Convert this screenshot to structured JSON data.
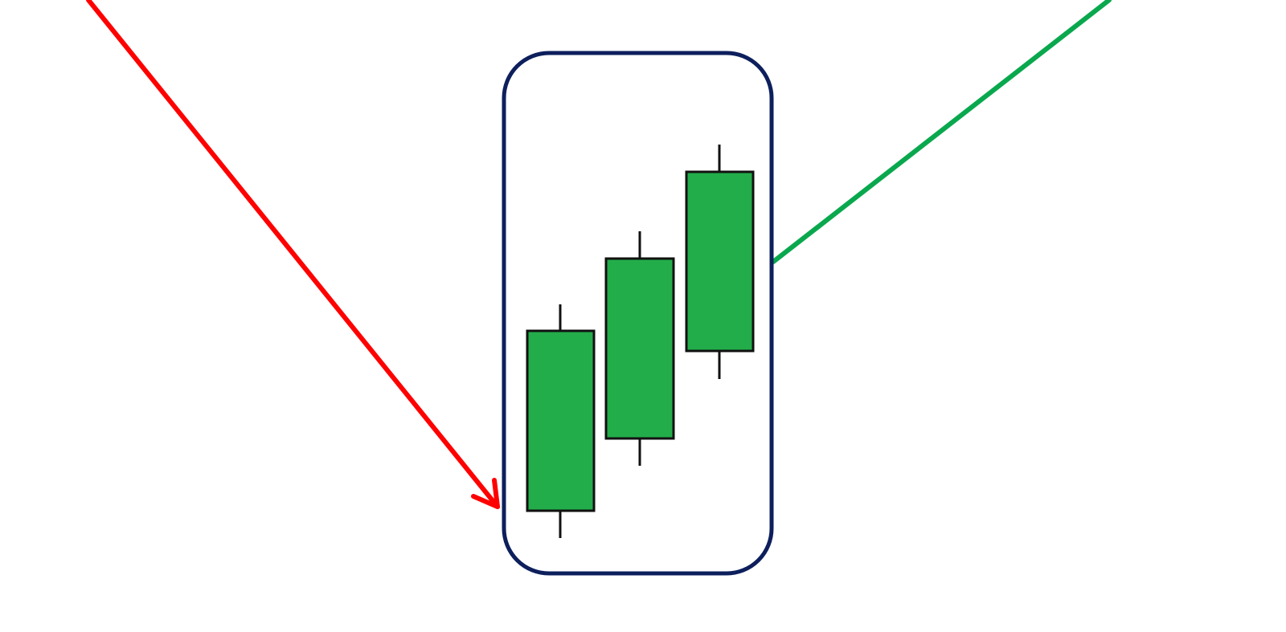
{
  "pattern": {
    "candle_count": 3,
    "candle_direction": "bullish",
    "trend_before": "down",
    "trend_after": "up"
  },
  "colors": {
    "background": "#ffffff",
    "downtrend_arrow": "#ff0000",
    "uptrend_line": "#0aa84e",
    "highlight_box": "#0d1f5c",
    "candle_body": "#23ad4a",
    "candle_outline": "#111111"
  }
}
